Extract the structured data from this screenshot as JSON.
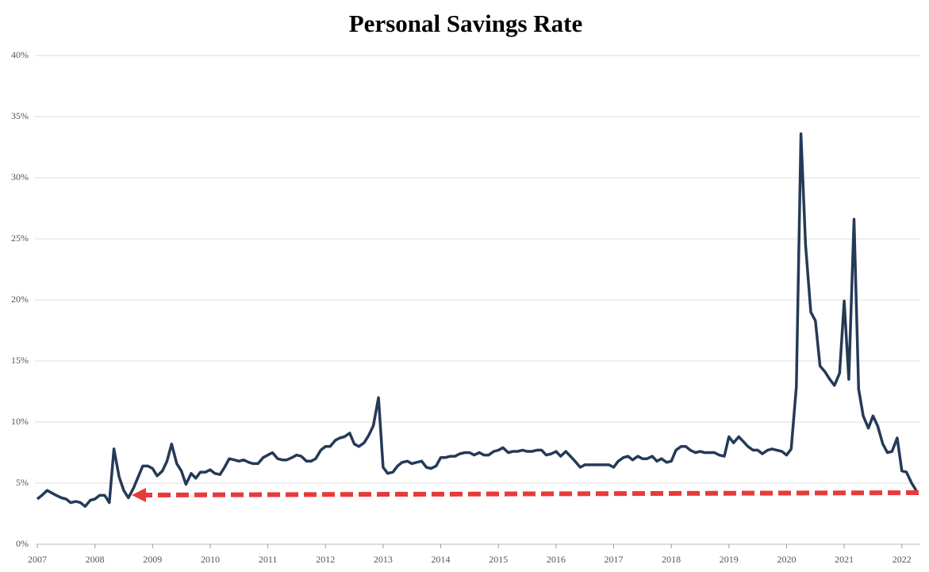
{
  "chart_data": {
    "type": "line",
    "title": "Personal Savings Rate",
    "x": [
      2007,
      2007.08,
      2007.17,
      2007.25,
      2007.33,
      2007.42,
      2007.5,
      2007.58,
      2007.67,
      2007.75,
      2007.83,
      2007.92,
      2008,
      2008.08,
      2008.17,
      2008.25,
      2008.33,
      2008.42,
      2008.5,
      2008.58,
      2008.67,
      2008.75,
      2008.83,
      2008.92,
      2009,
      2009.08,
      2009.17,
      2009.25,
      2009.33,
      2009.42,
      2009.5,
      2009.58,
      2009.67,
      2009.75,
      2009.83,
      2009.92,
      2010,
      2010.08,
      2010.17,
      2010.25,
      2010.33,
      2010.42,
      2010.5,
      2010.58,
      2010.67,
      2010.75,
      2010.83,
      2010.92,
      2011,
      2011.08,
      2011.17,
      2011.25,
      2011.33,
      2011.42,
      2011.5,
      2011.58,
      2011.67,
      2011.75,
      2011.83,
      2011.92,
      2012,
      2012.08,
      2012.17,
      2012.25,
      2012.33,
      2012.42,
      2012.5,
      2012.58,
      2012.67,
      2012.75,
      2012.83,
      2012.92,
      2013,
      2013.08,
      2013.17,
      2013.25,
      2013.33,
      2013.42,
      2013.5,
      2013.58,
      2013.67,
      2013.75,
      2013.83,
      2013.92,
      2014,
      2014.08,
      2014.17,
      2014.25,
      2014.33,
      2014.42,
      2014.5,
      2014.58,
      2014.67,
      2014.75,
      2014.83,
      2014.92,
      2015,
      2015.08,
      2015.17,
      2015.25,
      2015.33,
      2015.42,
      2015.5,
      2015.58,
      2015.67,
      2015.75,
      2015.83,
      2015.92,
      2016,
      2016.08,
      2016.17,
      2016.25,
      2016.33,
      2016.42,
      2016.5,
      2016.58,
      2016.67,
      2016.75,
      2016.83,
      2016.92,
      2017,
      2017.08,
      2017.17,
      2017.25,
      2017.33,
      2017.42,
      2017.5,
      2017.58,
      2017.67,
      2017.75,
      2017.83,
      2017.92,
      2018,
      2018.08,
      2018.17,
      2018.25,
      2018.33,
      2018.42,
      2018.5,
      2018.58,
      2018.67,
      2018.75,
      2018.83,
      2018.92,
      2019,
      2019.08,
      2019.17,
      2019.25,
      2019.33,
      2019.42,
      2019.5,
      2019.58,
      2019.67,
      2019.75,
      2019.83,
      2019.92,
      2020,
      2020.08,
      2020.17,
      2020.25,
      2020.33,
      2020.42,
      2020.5,
      2020.58,
      2020.67,
      2020.75,
      2020.83,
      2020.92,
      2021,
      2021.08,
      2021.17,
      2021.25,
      2021.33,
      2021.42,
      2021.5,
      2021.58,
      2021.67,
      2021.75,
      2021.83,
      2021.92,
      2022,
      2022.08,
      2022.17,
      2022.25
    ],
    "values": [
      3.7,
      4.0,
      4.4,
      4.2,
      4.0,
      3.8,
      3.7,
      3.4,
      3.5,
      3.4,
      3.1,
      3.6,
      3.7,
      4.0,
      4.0,
      3.4,
      7.8,
      5.5,
      4.4,
      3.8,
      4.6,
      5.5,
      6.4,
      6.4,
      6.2,
      5.6,
      6.0,
      6.8,
      8.2,
      6.6,
      6.0,
      4.9,
      5.8,
      5.4,
      5.9,
      5.9,
      6.1,
      5.8,
      5.7,
      6.3,
      7.0,
      6.9,
      6.8,
      6.9,
      6.7,
      6.6,
      6.6,
      7.1,
      7.3,
      7.5,
      7.0,
      6.9,
      6.9,
      7.1,
      7.3,
      7.2,
      6.8,
      6.8,
      7.0,
      7.7,
      8.0,
      8.0,
      8.5,
      8.7,
      8.8,
      9.1,
      8.2,
      8.0,
      8.3,
      8.9,
      9.7,
      12.0,
      6.3,
      5.8,
      5.9,
      6.4,
      6.7,
      6.8,
      6.6,
      6.7,
      6.8,
      6.3,
      6.2,
      6.4,
      7.1,
      7.1,
      7.2,
      7.2,
      7.4,
      7.5,
      7.5,
      7.3,
      7.5,
      7.3,
      7.3,
      7.6,
      7.7,
      7.9,
      7.5,
      7.6,
      7.6,
      7.7,
      7.6,
      7.6,
      7.7,
      7.7,
      7.3,
      7.4,
      7.6,
      7.2,
      7.6,
      7.2,
      6.8,
      6.3,
      6.5,
      6.5,
      6.5,
      6.5,
      6.5,
      6.5,
      6.3,
      6.8,
      7.1,
      7.2,
      6.9,
      7.2,
      7.0,
      7.0,
      7.2,
      6.8,
      7.0,
      6.7,
      6.8,
      7.7,
      8.0,
      8.0,
      7.7,
      7.5,
      7.6,
      7.5,
      7.5,
      7.5,
      7.3,
      7.2,
      8.8,
      8.3,
      8.8,
      8.4,
      8.0,
      7.7,
      7.7,
      7.4,
      7.7,
      7.8,
      7.7,
      7.6,
      7.3,
      7.8,
      12.9,
      33.6,
      24.5,
      19.0,
      18.3,
      14.6,
      14.1,
      13.5,
      13.0,
      14.0,
      19.9,
      13.5,
      26.6,
      12.7,
      10.5,
      9.5,
      10.5,
      9.7,
      8.2,
      7.5,
      7.6,
      8.7,
      6.0,
      5.9,
      5.0,
      4.4
    ],
    "color": "#253a57",
    "xlim": [
      2007,
      2022.32
    ],
    "xticks": [
      2007,
      2008,
      2009,
      2010,
      2011,
      2012,
      2013,
      2014,
      2015,
      2016,
      2017,
      2018,
      2019,
      2020,
      2021,
      2022
    ],
    "ylim": [
      0,
      40
    ],
    "yticks": [
      {
        "value": 0,
        "label": "0%"
      },
      {
        "value": 5,
        "label": "5%"
      },
      {
        "value": 10,
        "label": "10%"
      },
      {
        "value": 15,
        "label": "15%"
      },
      {
        "value": 20,
        "label": "20%"
      },
      {
        "value": 25,
        "label": "25%"
      },
      {
        "value": 30,
        "label": "30%"
      },
      {
        "value": 35,
        "label": "35%"
      },
      {
        "value": 40,
        "label": "40%"
      }
    ],
    "grid": true
  }
}
